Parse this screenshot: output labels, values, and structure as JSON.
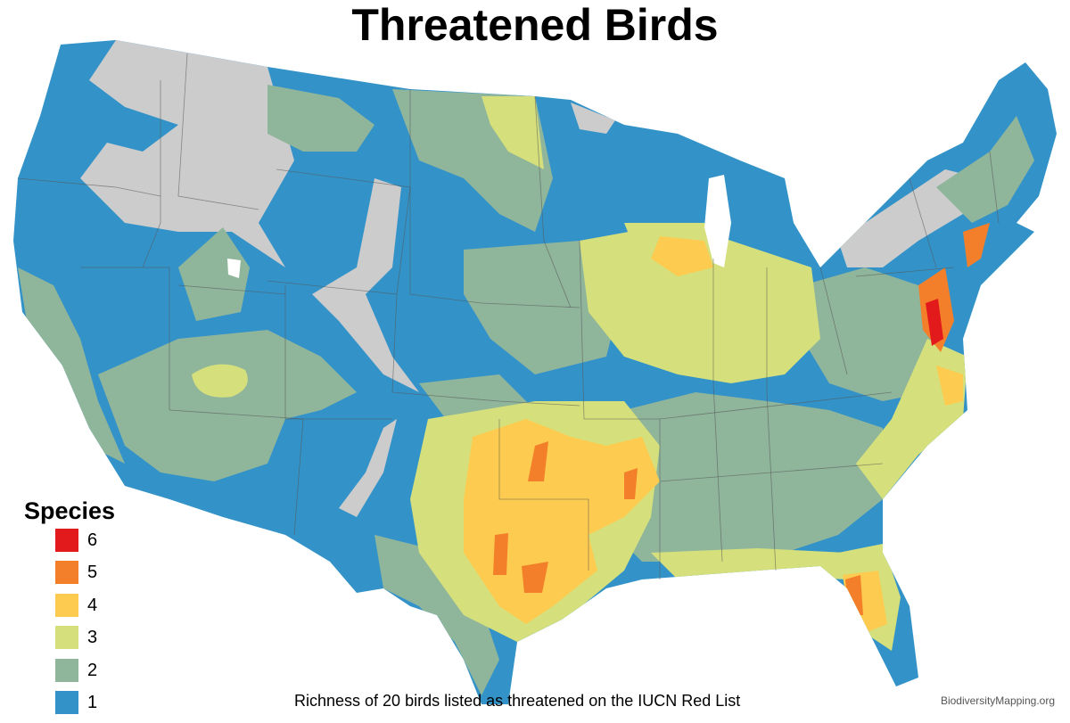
{
  "title": "Threatened Birds",
  "legend": {
    "heading": "Species",
    "items": [
      {
        "label": "6",
        "value": 6,
        "color": "#e31a1c"
      },
      {
        "label": "5",
        "value": 5,
        "color": "#f47f2a"
      },
      {
        "label": "4",
        "value": 4,
        "color": "#fccb4f"
      },
      {
        "label": "3",
        "value": 3,
        "color": "#d5e07c"
      },
      {
        "label": "2",
        "value": 2,
        "color": "#8fb59b"
      },
      {
        "label": "1",
        "value": 1,
        "color": "#3393c9"
      }
    ]
  },
  "no_data_color": "#cccccc",
  "caption": "Richness of 20 birds listed as threatened on the IUCN Red List",
  "credit": "BiodiversityMapping.org"
}
